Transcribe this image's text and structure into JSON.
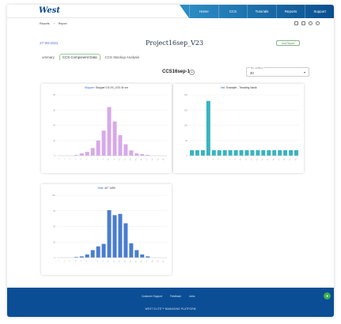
{
  "topbar": {
    "logo": "West",
    "nav": [
      "Home",
      "CCS",
      "Tutorials",
      "Reports",
      "Support"
    ]
  },
  "breadcrumb": [
    "Reports",
    "Report"
  ],
  "page": {
    "date": "27-09-2022",
    "title": "Project16sep_V23",
    "add_button": "Add Report"
  },
  "tabs": [
    {
      "label": "ummary",
      "active": false
    },
    {
      "label": "CCS Component Data",
      "active": true
    },
    {
      "label": "CCS Stackup Analysis",
      "active": false
    }
  ],
  "selector": {
    "label": "CCS16sep-1",
    "button": "+",
    "dropdown_label": "No. Of Bins",
    "dropdown_value": "20"
  },
  "charts": {
    "c1": {
      "title_hl": "Stopper",
      "title": ": Stopper 0.5.XX_V23: 5r cm"
    },
    "c2": {
      "title_hl": "Vial",
      "title": ": Example - Treading Vaulk"
    },
    "c3": {
      "title_hl": "Seal",
      "title": ": 4n° 1400"
    }
  },
  "chart_data": [
    {
      "type": "bar",
      "color": "#d7a9e8",
      "categories": [
        "1",
        "2",
        "3",
        "4",
        "5",
        "6",
        "7",
        "8",
        "9",
        "10",
        "11",
        "12",
        "13",
        "14",
        "15",
        "16",
        "17",
        "18",
        "19",
        "20"
      ],
      "values": [
        0,
        0,
        0,
        1,
        3,
        5,
        10,
        20,
        33,
        64,
        45,
        27,
        15,
        7,
        3,
        2,
        1,
        0,
        0,
        0
      ],
      "ylim": [
        0,
        80
      ]
    },
    {
      "type": "bar",
      "color": "#39b3c0",
      "categories": [
        "1",
        "2",
        "3",
        "4",
        "5",
        "6",
        "7",
        "8",
        "9",
        "10",
        "11",
        "12",
        "13",
        "14",
        "15",
        "16",
        "17",
        "18",
        "19",
        "20"
      ],
      "values": [
        18,
        18,
        18,
        180,
        18,
        18,
        18,
        18,
        18,
        18,
        18,
        18,
        18,
        18,
        18,
        18,
        18,
        18,
        18,
        18
      ],
      "ylim": [
        0,
        200
      ]
    },
    {
      "type": "bar",
      "color": "#4a7dd0",
      "categories": [
        "1",
        "2",
        "3",
        "4",
        "5",
        "6",
        "7",
        "8",
        "9",
        "10",
        "11",
        "12",
        "13",
        "14",
        "15",
        "16",
        "17",
        "18",
        "19",
        "20"
      ],
      "values": [
        0,
        0,
        0,
        1,
        2,
        5,
        12,
        18,
        22,
        76,
        68,
        70,
        55,
        23,
        12,
        5,
        2,
        0,
        0,
        0
      ],
      "ylim": [
        0,
        100
      ]
    }
  ],
  "footer": {
    "links": [
      "Customer Support",
      "Feedback",
      "Links"
    ],
    "brand": "WEST ELITE™ MANAGING PLATFORM"
  }
}
